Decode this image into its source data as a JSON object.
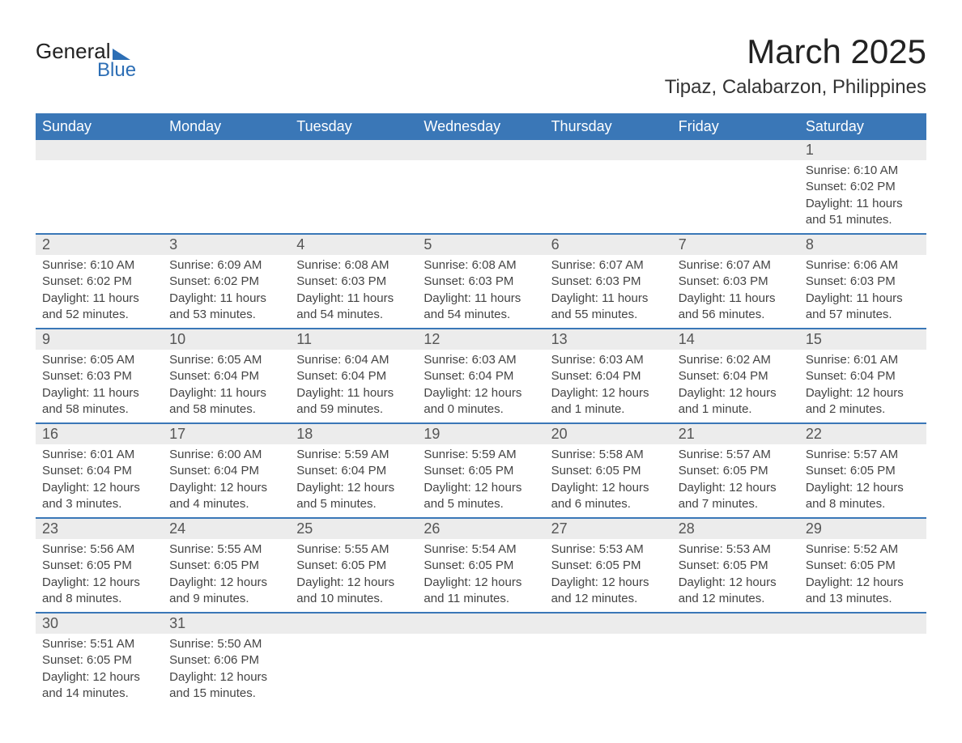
{
  "brand": {
    "line1": "General",
    "line2": "Blue"
  },
  "title": "March 2025",
  "location": "Tipaz, Calabarzon, Philippines",
  "colors": {
    "header_bg": "#3a77b7",
    "header_text": "#ffffff",
    "daynum_bg": "#ececec",
    "border": "#3a77b7",
    "text": "#333333",
    "logo_blue": "#2c6eb5"
  },
  "day_headers": [
    "Sunday",
    "Monday",
    "Tuesday",
    "Wednesday",
    "Thursday",
    "Friday",
    "Saturday"
  ],
  "weeks": [
    [
      null,
      null,
      null,
      null,
      null,
      null,
      {
        "n": "1",
        "sr": "Sunrise: 6:10 AM",
        "ss": "Sunset: 6:02 PM",
        "dl": "Daylight: 11 hours and 51 minutes."
      }
    ],
    [
      {
        "n": "2",
        "sr": "Sunrise: 6:10 AM",
        "ss": "Sunset: 6:02 PM",
        "dl": "Daylight: 11 hours and 52 minutes."
      },
      {
        "n": "3",
        "sr": "Sunrise: 6:09 AM",
        "ss": "Sunset: 6:02 PM",
        "dl": "Daylight: 11 hours and 53 minutes."
      },
      {
        "n": "4",
        "sr": "Sunrise: 6:08 AM",
        "ss": "Sunset: 6:03 PM",
        "dl": "Daylight: 11 hours and 54 minutes."
      },
      {
        "n": "5",
        "sr": "Sunrise: 6:08 AM",
        "ss": "Sunset: 6:03 PM",
        "dl": "Daylight: 11 hours and 54 minutes."
      },
      {
        "n": "6",
        "sr": "Sunrise: 6:07 AM",
        "ss": "Sunset: 6:03 PM",
        "dl": "Daylight: 11 hours and 55 minutes."
      },
      {
        "n": "7",
        "sr": "Sunrise: 6:07 AM",
        "ss": "Sunset: 6:03 PM",
        "dl": "Daylight: 11 hours and 56 minutes."
      },
      {
        "n": "8",
        "sr": "Sunrise: 6:06 AM",
        "ss": "Sunset: 6:03 PM",
        "dl": "Daylight: 11 hours and 57 minutes."
      }
    ],
    [
      {
        "n": "9",
        "sr": "Sunrise: 6:05 AM",
        "ss": "Sunset: 6:03 PM",
        "dl": "Daylight: 11 hours and 58 minutes."
      },
      {
        "n": "10",
        "sr": "Sunrise: 6:05 AM",
        "ss": "Sunset: 6:04 PM",
        "dl": "Daylight: 11 hours and 58 minutes."
      },
      {
        "n": "11",
        "sr": "Sunrise: 6:04 AM",
        "ss": "Sunset: 6:04 PM",
        "dl": "Daylight: 11 hours and 59 minutes."
      },
      {
        "n": "12",
        "sr": "Sunrise: 6:03 AM",
        "ss": "Sunset: 6:04 PM",
        "dl": "Daylight: 12 hours and 0 minutes."
      },
      {
        "n": "13",
        "sr": "Sunrise: 6:03 AM",
        "ss": "Sunset: 6:04 PM",
        "dl": "Daylight: 12 hours and 1 minute."
      },
      {
        "n": "14",
        "sr": "Sunrise: 6:02 AM",
        "ss": "Sunset: 6:04 PM",
        "dl": "Daylight: 12 hours and 1 minute."
      },
      {
        "n": "15",
        "sr": "Sunrise: 6:01 AM",
        "ss": "Sunset: 6:04 PM",
        "dl": "Daylight: 12 hours and 2 minutes."
      }
    ],
    [
      {
        "n": "16",
        "sr": "Sunrise: 6:01 AM",
        "ss": "Sunset: 6:04 PM",
        "dl": "Daylight: 12 hours and 3 minutes."
      },
      {
        "n": "17",
        "sr": "Sunrise: 6:00 AM",
        "ss": "Sunset: 6:04 PM",
        "dl": "Daylight: 12 hours and 4 minutes."
      },
      {
        "n": "18",
        "sr": "Sunrise: 5:59 AM",
        "ss": "Sunset: 6:04 PM",
        "dl": "Daylight: 12 hours and 5 minutes."
      },
      {
        "n": "19",
        "sr": "Sunrise: 5:59 AM",
        "ss": "Sunset: 6:05 PM",
        "dl": "Daylight: 12 hours and 5 minutes."
      },
      {
        "n": "20",
        "sr": "Sunrise: 5:58 AM",
        "ss": "Sunset: 6:05 PM",
        "dl": "Daylight: 12 hours and 6 minutes."
      },
      {
        "n": "21",
        "sr": "Sunrise: 5:57 AM",
        "ss": "Sunset: 6:05 PM",
        "dl": "Daylight: 12 hours and 7 minutes."
      },
      {
        "n": "22",
        "sr": "Sunrise: 5:57 AM",
        "ss": "Sunset: 6:05 PM",
        "dl": "Daylight: 12 hours and 8 minutes."
      }
    ],
    [
      {
        "n": "23",
        "sr": "Sunrise: 5:56 AM",
        "ss": "Sunset: 6:05 PM",
        "dl": "Daylight: 12 hours and 8 minutes."
      },
      {
        "n": "24",
        "sr": "Sunrise: 5:55 AM",
        "ss": "Sunset: 6:05 PM",
        "dl": "Daylight: 12 hours and 9 minutes."
      },
      {
        "n": "25",
        "sr": "Sunrise: 5:55 AM",
        "ss": "Sunset: 6:05 PM",
        "dl": "Daylight: 12 hours and 10 minutes."
      },
      {
        "n": "26",
        "sr": "Sunrise: 5:54 AM",
        "ss": "Sunset: 6:05 PM",
        "dl": "Daylight: 12 hours and 11 minutes."
      },
      {
        "n": "27",
        "sr": "Sunrise: 5:53 AM",
        "ss": "Sunset: 6:05 PM",
        "dl": "Daylight: 12 hours and 12 minutes."
      },
      {
        "n": "28",
        "sr": "Sunrise: 5:53 AM",
        "ss": "Sunset: 6:05 PM",
        "dl": "Daylight: 12 hours and 12 minutes."
      },
      {
        "n": "29",
        "sr": "Sunrise: 5:52 AM",
        "ss": "Sunset: 6:05 PM",
        "dl": "Daylight: 12 hours and 13 minutes."
      }
    ],
    [
      {
        "n": "30",
        "sr": "Sunrise: 5:51 AM",
        "ss": "Sunset: 6:05 PM",
        "dl": "Daylight: 12 hours and 14 minutes."
      },
      {
        "n": "31",
        "sr": "Sunrise: 5:50 AM",
        "ss": "Sunset: 6:06 PM",
        "dl": "Daylight: 12 hours and 15 minutes."
      },
      null,
      null,
      null,
      null,
      null
    ]
  ]
}
